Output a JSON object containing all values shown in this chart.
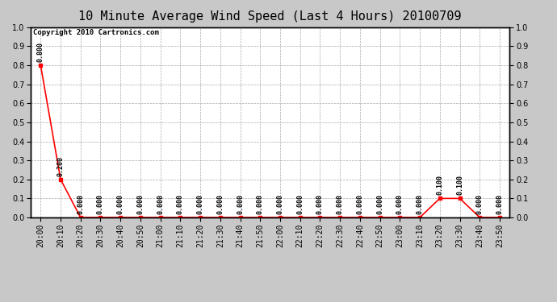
{
  "title": "10 Minute Average Wind Speed (Last 4 Hours) 20100709",
  "copyright": "Copyright 2010 Cartronics.com",
  "x_labels": [
    "20:00",
    "20:10",
    "20:20",
    "20:30",
    "20:40",
    "20:50",
    "21:00",
    "21:10",
    "21:20",
    "21:30",
    "21:40",
    "21:50",
    "22:00",
    "22:10",
    "22:20",
    "22:30",
    "22:40",
    "22:50",
    "23:00",
    "23:10",
    "23:20",
    "23:30",
    "23:40",
    "23:50"
  ],
  "y_values": [
    0.8,
    0.2,
    0.0,
    0.0,
    0.0,
    0.0,
    0.0,
    0.0,
    0.0,
    0.0,
    0.0,
    0.0,
    0.0,
    0.0,
    0.0,
    0.0,
    0.0,
    0.0,
    0.0,
    0.0,
    0.1,
    0.1,
    0.0,
    0.0
  ],
  "line_color": "#ff0000",
  "marker_color": "#ff0000",
  "background_color": "#c8c8c8",
  "plot_bg_color": "#ffffff",
  "grid_color": "#aaaaaa",
  "border_color": "#000000",
  "ylim_left": [
    0.0,
    1.0
  ],
  "ylim_right": [
    0.0,
    1.0
  ],
  "yticks_left": [
    0.0,
    0.1,
    0.2,
    0.3,
    0.4,
    0.5,
    0.6,
    0.7,
    0.8,
    0.9,
    1.0
  ],
  "yticks_right": [
    0.0,
    0.1,
    0.2,
    0.3,
    0.4,
    0.5,
    0.6,
    0.7,
    0.8,
    0.9,
    1.0
  ],
  "title_fontsize": 11,
  "annotation_fontsize": 6,
  "tick_fontsize": 7,
  "copyright_fontsize": 6.5
}
